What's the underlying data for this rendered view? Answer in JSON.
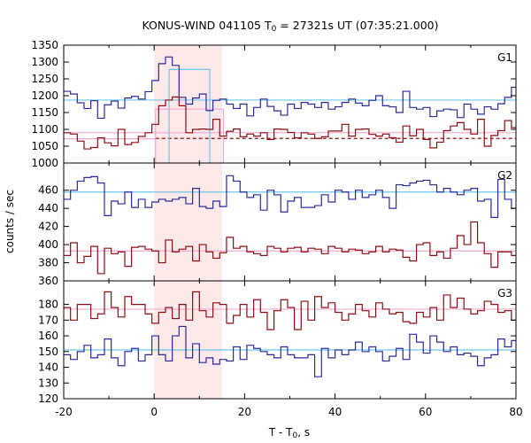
{
  "chart_data": {
    "type": "line",
    "title": "KONUS-WIND 041105 T",
    "title_sub": "0",
    "title_rest": " = 27321s UT (07:35:21.000)",
    "xlabel": "T - T",
    "xlabel_sub": "0",
    "xlabel_rest": ", s",
    "ylabel": "counts / sec",
    "xlim": [
      -20,
      80
    ],
    "xticks": [
      "-20",
      "0",
      "20",
      "40",
      "60",
      "80"
    ],
    "highlight": {
      "x0": 0,
      "x1": 15,
      "color": "#fde8ea"
    },
    "colors": {
      "blue": "#2a2a9c",
      "red": "#8b0d12",
      "cyan": "#6ec6e8",
      "pink": "#f0a8cf"
    },
    "panels": [
      {
        "label": "G1",
        "ylim": [
          1000,
          1350
        ],
        "yticks": [
          "1000",
          "1050",
          "1100",
          "1150",
          "1200",
          "1250",
          "1300",
          "1350"
        ],
        "x_start": -20,
        "bin": 1.5,
        "series": [
          {
            "color": "blue",
            "values": [
              1213,
              1205,
              1179,
              1162,
              1185,
              1133,
              1173,
              1184,
              1163,
              1193,
              1198,
              1190,
              1212,
              1245,
              1295,
              1315,
              1290,
              1195,
              1175,
              1193,
              1205,
              1156,
              1186,
              1190,
              1175,
              1162,
              1175,
              1140,
              1165,
              1190,
              1168,
              1155,
              1142,
              1175,
              1162,
              1180,
              1175,
              1165,
              1180,
              1160,
              1167,
              1180,
              1190,
              1178,
              1170,
              1186,
              1200,
              1170,
              1167,
              1150,
              1213,
              1165,
              1160,
              1165,
              1138,
              1155,
              1160,
              1158,
              1135,
              1175,
              1160,
              1145,
              1167,
              1160,
              1176,
              1195,
              1225
            ]
          },
          {
            "color": "red",
            "values": [
              1090,
              1086,
              1065,
              1042,
              1046,
              1075,
              1060,
              1051,
              1100,
              1055,
              1061,
              1079,
              1090,
              1115,
              1170,
              1187,
              1196,
              1170,
              1090,
              1100,
              1101,
              1100,
              1130,
              1080,
              1094,
              1101,
              1078,
              1086,
              1080,
              1090,
              1070,
              1101,
              1100,
              1091,
              1075,
              1090,
              1086,
              1073,
              1078,
              1095,
              1095,
              1115,
              1080,
              1100,
              1101,
              1085,
              1080,
              1086,
              1075,
              1062,
              1110,
              1081,
              1100,
              1070,
              1045,
              1062,
              1096,
              1110,
              1120,
              1100,
              1086,
              1130,
              1050,
              1082,
              1096,
              1126,
              1105
            ]
          }
        ],
        "boxes": [
          {
            "color": "cyan",
            "x0": 3.3,
            "x1": 12.3,
            "y": 1278
          },
          {
            "color": "pink",
            "x0": 0.3,
            "x1": 15.3,
            "y": 1160
          }
        ],
        "bg_lines": [
          {
            "color": "cyan",
            "y": 1187,
            "dashed": false
          },
          {
            "color": "pink",
            "y": 1090,
            "dashed": false
          },
          {
            "color": "pink",
            "y": 1072,
            "dashed": false,
            "x1": 0.3
          },
          {
            "color": "red",
            "y": 1073,
            "dashed": true,
            "x0": 0.3
          }
        ]
      },
      {
        "label": "G2",
        "ylim": [
          360,
          490
        ],
        "yticks": [
          "360",
          "380",
          "400",
          "420",
          "440",
          "460",
          "480"
        ],
        "x_start": -20,
        "bin": 1.5,
        "series": [
          {
            "color": "blue",
            "values": [
              450,
              460,
              470,
              474,
              475,
              468,
              432,
              448,
              445,
              458,
              441,
              450,
              441,
              447,
              450,
              448,
              450,
              452,
              445,
              462,
              442,
              440,
              448,
              442,
              476,
              470,
              458,
              452,
              455,
              438,
              460,
              455,
              436,
              448,
              452,
              441,
              441,
              443,
              455,
              447,
              460,
              458,
              450,
              460,
              452,
              455,
              460,
              452,
              440,
              466,
              465,
              468,
              470,
              471,
              466,
              458,
              462,
              458,
              455,
              460,
              462,
              448,
              450,
              430,
              472,
              450,
              440
            ]
          },
          {
            "color": "red",
            "values": [
              388,
              402,
              380,
              387,
              398,
              368,
              396,
              390,
              392,
              376,
              397,
              398,
              395,
              393,
              380,
              405,
              392,
              395,
              398,
              382,
              400,
              392,
              385,
              391,
              408,
              396,
              398,
              392,
              390,
              388,
              398,
              396,
              392,
              396,
              397,
              392,
              396,
              395,
              390,
              398,
              396,
              392,
              395,
              394,
              390,
              392,
              398,
              392,
              395,
              394,
              386,
              382,
              400,
              402,
              388,
              392,
              385,
              396,
              410,
              400,
              425,
              402,
              390,
              375,
              392,
              392,
              388
            ]
          }
        ],
        "boxes": [],
        "bg_lines": [
          {
            "color": "cyan",
            "y": 458,
            "dashed": false
          },
          {
            "color": "pink",
            "y": 393,
            "dashed": false
          }
        ]
      },
      {
        "label": "G3",
        "ylim": [
          120,
          195
        ],
        "yticks": [
          "120",
          "130",
          "140",
          "150",
          "160",
          "170",
          "180",
          "190"
        ],
        "x_start": -20,
        "bin": 1.5,
        "series": [
          {
            "color": "red",
            "values": [
              178,
              170,
              180,
              180,
              171,
              174,
              188,
              178,
              172,
              185,
              180,
              180,
              174,
              168,
              175,
              178,
              171,
              180,
              170,
              188,
              176,
              172,
              181,
              180,
              168,
              173,
              180,
              172,
              183,
              175,
              164,
              176,
              183,
              178,
              164,
              182,
              170,
              185,
              178,
              181,
              175,
              170,
              174,
              180,
              176,
              172,
              181,
              177,
              174,
              175,
              169,
              168,
              175,
              172,
              178,
              170,
              186,
              178,
              184,
              177,
              174,
              176,
              182,
              180,
              175,
              176,
              170
            ]
          },
          {
            "color": "blue",
            "values": [
              148,
              145,
              150,
              154,
              146,
              148,
              158,
              146,
              141,
              150,
              152,
              144,
              148,
              160,
              148,
              144,
              160,
              166,
              146,
              155,
              143,
              146,
              142,
              145,
              144,
              153,
              145,
              154,
              152,
              150,
              148,
              146,
              153,
              148,
              146,
              146,
              148,
              134,
              152,
              146,
              151,
              148,
              151,
              156,
              150,
              153,
              150,
              144,
              147,
              152,
              145,
              161,
              156,
              149,
              160,
              156,
              150,
              153,
              148,
              149,
              147,
              141,
              146,
              148,
              158,
              153,
              157
            ]
          }
        ],
        "boxes": [],
        "bg_lines": [
          {
            "color": "pink",
            "y": 177,
            "dashed": false
          },
          {
            "color": "cyan",
            "y": 151,
            "dashed": false
          }
        ]
      }
    ]
  }
}
